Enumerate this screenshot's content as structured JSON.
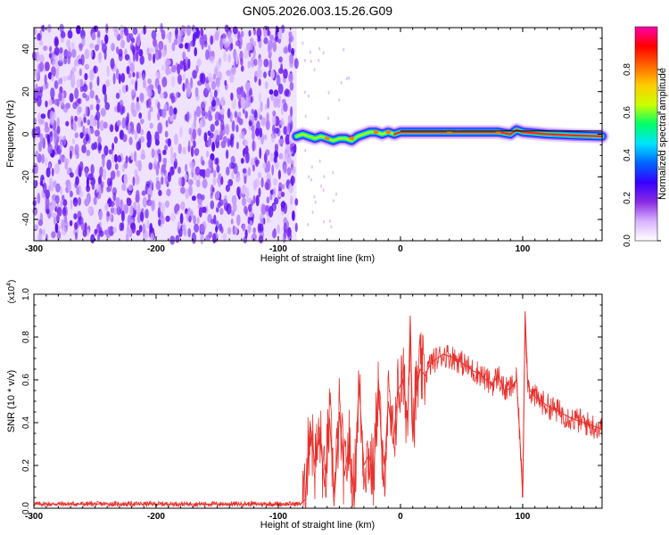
{
  "title": "GN05.2026.003.15.26.G09",
  "chart_data": [
    {
      "type": "heatmap",
      "xlabel": "Height of straight line (km)",
      "ylabel": "Frequency (Hz)",
      "xlim": [
        -300,
        165
      ],
      "ylim": [
        -50,
        50
      ],
      "xticks": [
        -300,
        -200,
        -100,
        0,
        100
      ],
      "xtick_labels": [
        "-300",
        "-200",
        "-100",
        "0",
        "100"
      ],
      "yticks": [
        -40,
        -20,
        0,
        20,
        40
      ],
      "ytick_labels": [
        "-40",
        "-20",
        "0",
        "20",
        "40"
      ],
      "noise_region_x": [
        -300,
        -85
      ],
      "signal_ridge": {
        "x": [
          -85,
          -80,
          -75,
          -70,
          -65,
          -60,
          -55,
          -50,
          -45,
          -40,
          -35,
          -30,
          -25,
          -20,
          -15,
          -10,
          -5,
          0,
          20,
          40,
          60,
          80,
          90,
          95,
          100,
          120,
          140,
          165
        ],
        "frequency": [
          -1,
          0,
          -1,
          -2,
          -1,
          -2,
          -3,
          -2,
          -2,
          -3,
          -1,
          0,
          1,
          1,
          0,
          1,
          0,
          1,
          1,
          1,
          1,
          1,
          0,
          2,
          1,
          0,
          -0.5,
          -1
        ]
      },
      "colorbar": {
        "label": "Normalized spectral amplitude",
        "range": [
          0,
          1
        ],
        "ticks": [
          0.0,
          0.2,
          0.4,
          0.6,
          0.8
        ],
        "tick_labels": [
          "0.0",
          "0.2",
          "0.4",
          "0.6",
          "0.8"
        ],
        "colormap": [
          "#ffffff",
          "#d9b3ff",
          "#8a2be2",
          "#3300ff",
          "#0066ff",
          "#00e5ff",
          "#00ff66",
          "#ccff00",
          "#ffcc00",
          "#ff6600",
          "#ff0000",
          "#ff00aa"
        ]
      },
      "grid": false
    },
    {
      "type": "line",
      "xlabel": "Height of straight line (km)",
      "ylabel": "SNR (10 * v/v)",
      "y_multiplier": "(x10",
      "y_multiplier_exp": "4",
      "y_multiplier_close": ")",
      "xlim": [
        -300,
        165
      ],
      "ylim": [
        0,
        1
      ],
      "xticks": [
        -300,
        -200,
        -100,
        0,
        100
      ],
      "xtick_labels": [
        "-300",
        "-200",
        "-100",
        "0",
        "100"
      ],
      "yticks": [
        0.0,
        0.2,
        0.4,
        0.6,
        0.8,
        1.0
      ],
      "ytick_labels": [
        "0.0",
        "0.2",
        "0.4",
        "0.6",
        "0.8",
        "1.0"
      ],
      "color": "#e8302c",
      "series": [
        {
          "x": [
            -300,
            -280,
            -260,
            -240,
            -220,
            -200,
            -180,
            -160,
            -140,
            -120,
            -100,
            -90,
            -82,
            -78,
            -74,
            -70,
            -66,
            -62,
            -58,
            -54,
            -50,
            -46,
            -42,
            -38,
            -34,
            -30,
            -26,
            -22,
            -18,
            -14,
            -10,
            -6,
            -2,
            2,
            6,
            8,
            10,
            12,
            16,
            20,
            25,
            30,
            35,
            40,
            45,
            50,
            55,
            60,
            65,
            70,
            75,
            80,
            85,
            90,
            95,
            98,
            100,
            102,
            104,
            106,
            110,
            115,
            120,
            130,
            140,
            150,
            165
          ],
          "values": [
            0.02,
            0.02,
            0.02,
            0.02,
            0.02,
            0.02,
            0.02,
            0.02,
            0.02,
            0.02,
            0.02,
            0.02,
            0.02,
            0.04,
            0.4,
            0.2,
            0.35,
            0.1,
            0.42,
            0.05,
            0.45,
            0.15,
            0.3,
            0.05,
            0.58,
            0.2,
            0.25,
            0.15,
            0.6,
            0.1,
            0.5,
            0.3,
            0.55,
            0.6,
            0.4,
            0.9,
            0.35,
            0.5,
            0.65,
            0.62,
            0.68,
            0.7,
            0.72,
            0.71,
            0.7,
            0.68,
            0.66,
            0.64,
            0.63,
            0.6,
            0.58,
            0.62,
            0.55,
            0.56,
            0.6,
            0.3,
            0.05,
            0.92,
            0.6,
            0.55,
            0.52,
            0.5,
            0.48,
            0.45,
            0.42,
            0.4,
            0.37
          ]
        }
      ],
      "grid": false
    }
  ]
}
